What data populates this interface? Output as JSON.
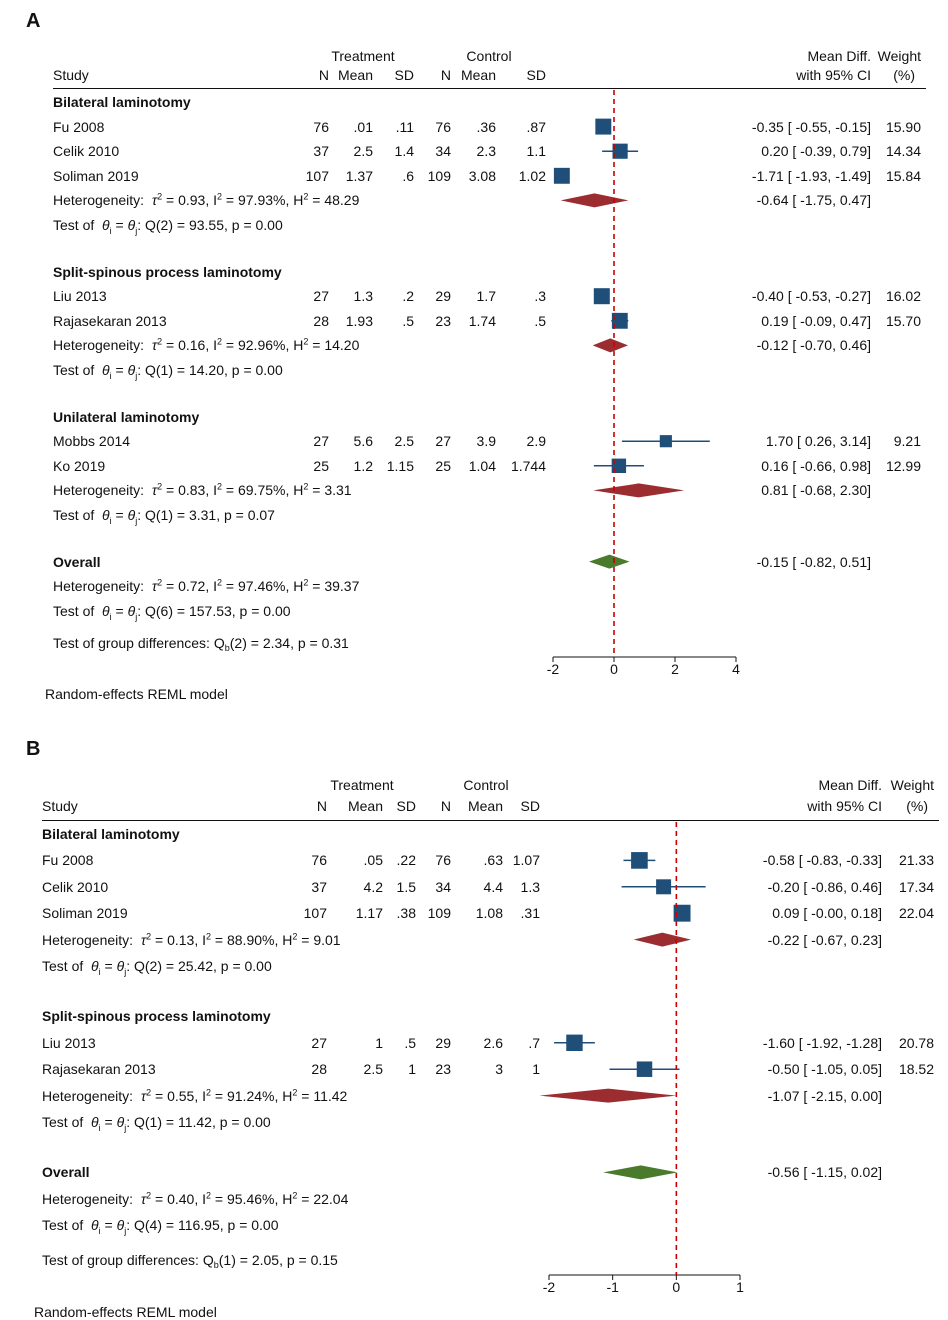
{
  "panelA": {
    "label": "A",
    "headers": {
      "study": "Study",
      "treatment": "Treatment",
      "control": "Control",
      "n1": "N",
      "mean1": "Mean",
      "sd1": "SD",
      "n2": "N",
      "mean2": "Mean",
      "sd2": "SD",
      "md1": "Mean Diff.",
      "md2": "with 95% CI",
      "w1": "Weight",
      "w2": "(%)"
    },
    "groups": [
      {
        "title": "Bilateral laminotomy",
        "studies": [
          {
            "name": "Fu 2008",
            "n1": "76",
            "m1": ".01",
            "sd1": ".11",
            "n2": "76",
            "m2": ".36",
            "sd2": ".87",
            "ci": "-0.35 [  -0.55,  -0.15]",
            "weight": "15.90"
          },
          {
            "name": "Celik 2010",
            "n1": "37",
            "m1": "2.5",
            "sd1": "1.4",
            "n2": "34",
            "m2": "2.3",
            "sd2": "1.1",
            "ci": "0.20 [  -0.39,   0.79]",
            "weight": "14.34"
          },
          {
            "name": "Soliman 2019",
            "n1": "107",
            "m1": "1.37",
            "sd1": ".6",
            "n2": "109",
            "m2": "3.08",
            "sd2": "1.02",
            "ci": "-1.71 [  -1.93,  -1.49]",
            "weight": "15.84"
          }
        ],
        "het": {
          "tau": "0.93",
          "i2": "97.93%",
          "h2": "48.29"
        },
        "het_ci": "-0.64 [  -1.75,   0.47]",
        "test": "Q(2) = 93.55, p = 0.00"
      },
      {
        "title": "Split-spinous process laminotomy",
        "studies": [
          {
            "name": "Liu 2013",
            "n1": "27",
            "m1": "1.3",
            "sd1": ".2",
            "n2": "29",
            "m2": "1.7",
            "sd2": ".3",
            "ci": "-0.40 [  -0.53,  -0.27]",
            "weight": "16.02"
          },
          {
            "name": "Rajasekaran 2013",
            "n1": "28",
            "m1": "1.93",
            "sd1": ".5",
            "n2": "23",
            "m2": "1.74",
            "sd2": ".5",
            "ci": "0.19 [  -0.09,   0.47]",
            "weight": "15.70"
          }
        ],
        "het": {
          "tau": "0.16",
          "i2": "92.96%",
          "h2": "14.20"
        },
        "het_ci": "-0.12 [  -0.70,   0.46]",
        "test": "Q(1) = 14.20, p = 0.00"
      },
      {
        "title": "Unilateral laminotomy",
        "studies": [
          {
            "name": "Mobbs 2014",
            "n1": "27",
            "m1": "5.6",
            "sd1": "2.5",
            "n2": "27",
            "m2": "3.9",
            "sd2": "2.9",
            "ci": "1.70 [   0.26,   3.14]",
            "weight": "9.21"
          },
          {
            "name": "Ko 2019",
            "n1": "25",
            "m1": "1.2",
            "sd1": "1.15",
            "n2": "25",
            "m2": "1.04",
            "sd2": "1.744",
            "ci": "0.16 [  -0.66,   0.98]",
            "weight": "12.99"
          }
        ],
        "het": {
          "tau": "0.83",
          "i2": "69.75%",
          "h2": "3.31"
        },
        "het_ci": "0.81 [  -0.68,   2.30]",
        "test": "Q(1) = 3.31, p = 0.07"
      }
    ],
    "overall": {
      "title": "Overall",
      "ci": "-0.15 [  -0.82,   0.51]",
      "het": {
        "tau": "0.72",
        "i2": "97.46%",
        "h2": "39.37"
      },
      "test": "Q(6) = 157.53, p = 0.00",
      "group_diff": "(2) = 2.34, p = 0.31"
    },
    "footer": "Random-effects REML model"
  },
  "panelB": {
    "label": "B",
    "headers": {
      "study": "Study",
      "treatment": "Treatment",
      "control": "Control",
      "n1": "N",
      "mean1": "Mean",
      "sd1": "SD",
      "n2": "N",
      "mean2": "Mean",
      "sd2": "SD",
      "md1": "Mean Diff.",
      "md2": "with 95% CI",
      "w1": "Weight",
      "w2": "(%)"
    },
    "groups": [
      {
        "title": "Bilateral laminotomy",
        "studies": [
          {
            "name": "Fu 2008",
            "n1": "76",
            "m1": ".05",
            "sd1": ".22",
            "n2": "76",
            "m2": ".63",
            "sd2": "1.07",
            "ci": "-0.58 [  -0.83,  -0.33]",
            "weight": "21.33"
          },
          {
            "name": "Celik 2010",
            "n1": "37",
            "m1": "4.2",
            "sd1": "1.5",
            "n2": "34",
            "m2": "4.4",
            "sd2": "1.3",
            "ci": "-0.20 [  -0.86,   0.46]",
            "weight": "17.34"
          },
          {
            "name": "Soliman 2019",
            "n1": "107",
            "m1": "1.17",
            "sd1": ".38",
            "n2": "109",
            "m2": "1.08",
            "sd2": ".31",
            "ci": "0.09 [  -0.00,   0.18]",
            "weight": "22.04"
          }
        ],
        "het": {
          "tau": "0.13",
          "i2": "88.90%",
          "h2": "9.01"
        },
        "het_ci": "-0.22 [  -0.67,   0.23]",
        "test": "Q(2) = 25.42, p = 0.00"
      },
      {
        "title": "Split-spinous process laminotomy",
        "studies": [
          {
            "name": "Liu 2013",
            "n1": "27",
            "m1": "1",
            "sd1": ".5",
            "n2": "29",
            "m2": "2.6",
            "sd2": ".7",
            "ci": "-1.60 [  -1.92,  -1.28]",
            "weight": "20.78"
          },
          {
            "name": "Rajasekaran 2013",
            "n1": "28",
            "m1": "2.5",
            "sd1": "1",
            "n2": "23",
            "m2": "3",
            "sd2": "1",
            "ci": "-0.50 [  -1.05,   0.05]",
            "weight": "18.52"
          }
        ],
        "het": {
          "tau": "0.55",
          "i2": "91.24%",
          "h2": "11.42"
        },
        "het_ci": "-1.07 [  -2.15,   0.00]",
        "test": "Q(1) = 11.42, p = 0.00"
      }
    ],
    "overall": {
      "title": "Overall",
      "ci": "-0.56 [  -1.15,   0.02]",
      "het": {
        "tau": "0.40",
        "i2": "95.46%",
        "h2": "22.04"
      },
      "test": "Q(4) = 116.95, p = 0.00",
      "group_diff": "(1) = 2.05, p = 0.15"
    },
    "footer": "Random-effects REML model"
  },
  "labels": {
    "heterogeneity": "Heterogeneity:",
    "test_of": "Test of",
    "group_diff": "Test of group differences: Q",
    "group_diff_sub": "b"
  },
  "chart_data": [
    {
      "type": "forest",
      "panel": "A",
      "xlim": [
        -2,
        4
      ],
      "xticks": [
        "-2",
        "0",
        "2",
        "4"
      ],
      "null_line": 0,
      "colors": {
        "study": "#1f4e79",
        "subgroup": "#9b2d30",
        "overall": "#4a7a2c",
        "null_line": "#cc0000"
      },
      "studies": [
        {
          "name": "Fu 2008",
          "est": -0.35,
          "lo": -0.55,
          "hi": -0.15,
          "weight": 15.9
        },
        {
          "name": "Celik 2010",
          "est": 0.2,
          "lo": -0.39,
          "hi": 0.79,
          "weight": 14.34
        },
        {
          "name": "Soliman 2019",
          "est": -1.71,
          "lo": -1.93,
          "hi": -1.49,
          "weight": 15.84
        },
        {
          "name": "Liu 2013",
          "est": -0.4,
          "lo": -0.53,
          "hi": -0.27,
          "weight": 16.02
        },
        {
          "name": "Rajasekaran 2013",
          "est": 0.19,
          "lo": -0.09,
          "hi": 0.47,
          "weight": 15.7
        },
        {
          "name": "Mobbs 2014",
          "est": 1.7,
          "lo": 0.26,
          "hi": 3.14,
          "weight": 9.21
        },
        {
          "name": "Ko 2019",
          "est": 0.16,
          "lo": -0.66,
          "hi": 0.98,
          "weight": 12.99
        }
      ],
      "subgroups": [
        {
          "name": "Bilateral laminotomy",
          "est": -0.64,
          "lo": -1.75,
          "hi": 0.47
        },
        {
          "name": "Split-spinous process laminotomy",
          "est": -0.12,
          "lo": -0.7,
          "hi": 0.46
        },
        {
          "name": "Unilateral laminotomy",
          "est": 0.81,
          "lo": -0.68,
          "hi": 2.3
        }
      ],
      "overall": {
        "est": -0.15,
        "lo": -0.82,
        "hi": 0.51
      }
    },
    {
      "type": "forest",
      "panel": "B",
      "xlim": [
        -2,
        1
      ],
      "xticks": [
        "-2",
        "-1",
        "0",
        "1"
      ],
      "null_line": 0,
      "colors": {
        "study": "#1f4e79",
        "subgroup": "#9b2d30",
        "overall": "#4a7a2c",
        "null_line": "#cc0000"
      },
      "studies": [
        {
          "name": "Fu 2008",
          "est": -0.58,
          "lo": -0.83,
          "hi": -0.33,
          "weight": 21.33
        },
        {
          "name": "Celik 2010",
          "est": -0.2,
          "lo": -0.86,
          "hi": 0.46,
          "weight": 17.34
        },
        {
          "name": "Soliman 2019",
          "est": 0.09,
          "lo": -0.0,
          "hi": 0.18,
          "weight": 22.04
        },
        {
          "name": "Liu 2013",
          "est": -1.6,
          "lo": -1.92,
          "hi": -1.28,
          "weight": 20.78
        },
        {
          "name": "Rajasekaran 2013",
          "est": -0.5,
          "lo": -1.05,
          "hi": 0.05,
          "weight": 18.52
        }
      ],
      "subgroups": [
        {
          "name": "Bilateral laminotomy",
          "est": -0.22,
          "lo": -0.67,
          "hi": 0.23
        },
        {
          "name": "Split-spinous process laminotomy",
          "est": -1.07,
          "lo": -2.15,
          "hi": 0.0
        }
      ],
      "overall": {
        "est": -0.56,
        "lo": -1.15,
        "hi": 0.02
      }
    }
  ]
}
